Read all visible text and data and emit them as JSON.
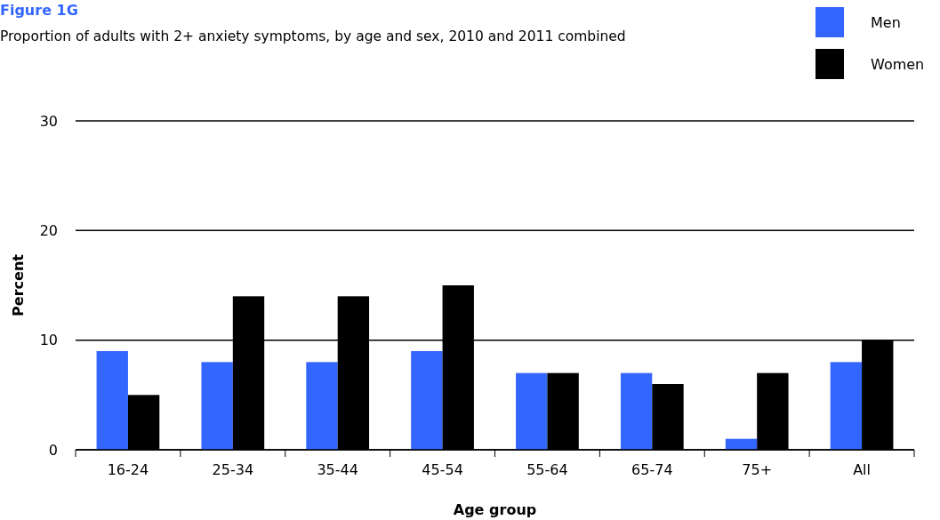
{
  "chart_data": {
    "type": "bar",
    "title": "Figure 1G",
    "subtitle": "Proportion of adults with 2+ anxiety symptoms, by age and sex, 2010 and 2011 combined",
    "xlabel": "Age group",
    "ylabel": "Percent",
    "categories": [
      "16-24",
      "25-34",
      "35-44",
      "45-54",
      "55-64",
      "65-74",
      "75+",
      "All"
    ],
    "series": [
      {
        "name": "Men",
        "color": "#3366ff",
        "values": [
          9,
          8,
          8,
          9,
          7,
          7,
          1,
          8
        ]
      },
      {
        "name": "Women",
        "color": "#000000",
        "values": [
          5,
          14,
          14,
          15,
          7,
          6,
          7,
          10
        ]
      }
    ],
    "ylim": [
      0,
      30
    ],
    "yticks": [
      0,
      10,
      20,
      30
    ],
    "grid": "y",
    "legend": "top right"
  }
}
